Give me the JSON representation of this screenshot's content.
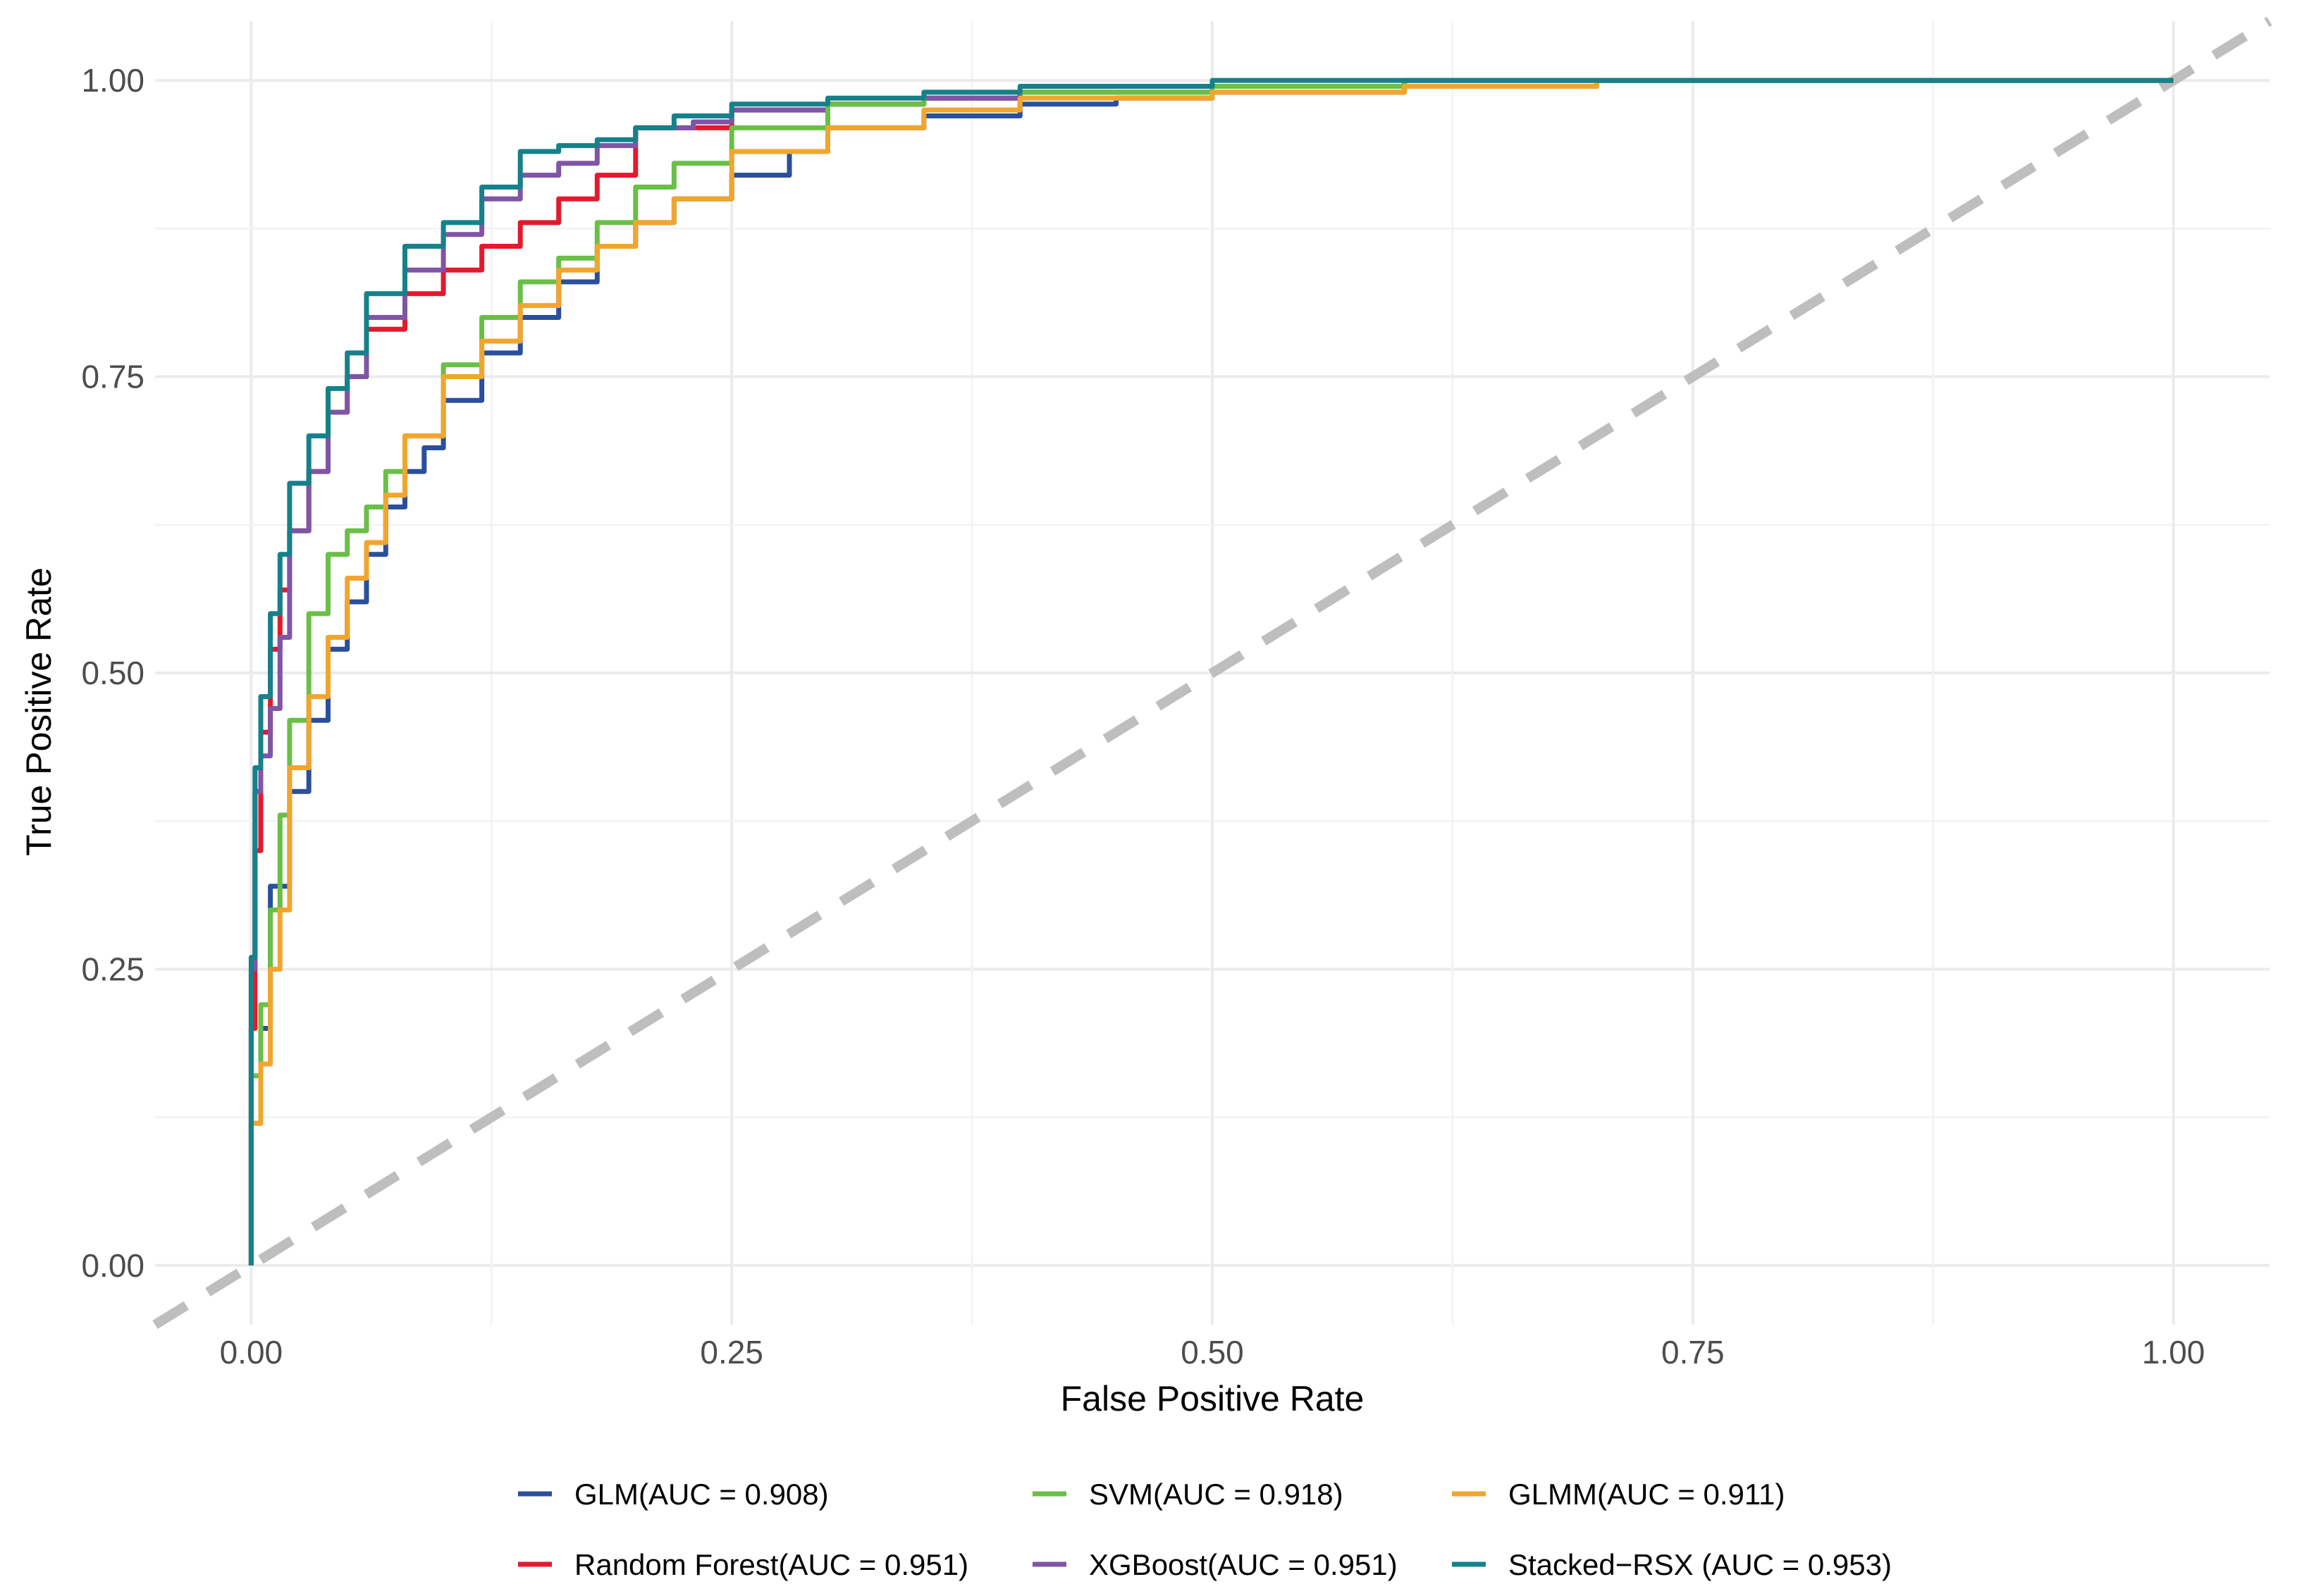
{
  "chart_data": {
    "type": "line",
    "title": "",
    "xlabel": "False Positive Rate",
    "ylabel": "True Positive Rate",
    "xlim": [
      -0.05,
      1.05
    ],
    "ylim": [
      -0.05,
      1.05
    ],
    "x_ticks": [
      0,
      0.25,
      0.5,
      0.75,
      1
    ],
    "x_tick_labels": [
      "0.00",
      "0.25",
      "0.50",
      "0.75",
      "1.00"
    ],
    "y_ticks": [
      0,
      0.25,
      0.5,
      0.75,
      1
    ],
    "y_tick_labels": [
      "0.00",
      "0.25",
      "0.50",
      "0.75",
      "1.00"
    ],
    "grid": true,
    "legend_position": "bottom",
    "reference_line": {
      "name": "chance",
      "x": [
        -0.05,
        1.05
      ],
      "y": [
        -0.05,
        1.05
      ],
      "color": "#bebebe",
      "style": "dashed"
    },
    "series": [
      {
        "name": "GLM(AUC = 0.908)",
        "color": "#2a4f9c",
        "x": [
          0,
          0.005,
          0.01,
          0.02,
          0.03,
          0.04,
          0.05,
          0.06,
          0.07,
          0.08,
          0.09,
          0.1,
          0.12,
          0.14,
          0.16,
          0.18,
          0.2,
          0.22,
          0.25,
          0.28,
          0.3,
          0.35,
          0.4,
          0.45,
          0.5,
          0.6,
          0.7,
          0.8,
          0.9,
          1
        ],
        "y": [
          0,
          0.12,
          0.2,
          0.32,
          0.4,
          0.46,
          0.52,
          0.56,
          0.6,
          0.64,
          0.67,
          0.69,
          0.73,
          0.77,
          0.8,
          0.83,
          0.86,
          0.88,
          0.9,
          0.92,
          0.94,
          0.96,
          0.97,
          0.98,
          0.985,
          0.99,
          0.995,
          1,
          1,
          1
        ]
      },
      {
        "name": "Random Forest(AUC = 0.951)",
        "color": "#e31a2d",
        "x": [
          0,
          0.002,
          0.005,
          0.01,
          0.015,
          0.02,
          0.03,
          0.04,
          0.05,
          0.06,
          0.08,
          0.1,
          0.12,
          0.14,
          0.16,
          0.18,
          0.2,
          0.25,
          0.3,
          0.35,
          0.4,
          0.5,
          0.6,
          0.7,
          0.8,
          0.9,
          1
        ],
        "y": [
          0,
          0.2,
          0.35,
          0.45,
          0.52,
          0.57,
          0.62,
          0.67,
          0.72,
          0.75,
          0.79,
          0.82,
          0.84,
          0.86,
          0.88,
          0.9,
          0.92,
          0.96,
          0.975,
          0.98,
          0.985,
          0.99,
          0.995,
          1,
          1,
          1,
          1
        ]
      },
      {
        "name": "XGBoost(AUC = 0.951)",
        "color": "#8054a6",
        "x": [
          0,
          0.002,
          0.005,
          0.01,
          0.015,
          0.02,
          0.03,
          0.04,
          0.05,
          0.06,
          0.08,
          0.1,
          0.12,
          0.14,
          0.16,
          0.18,
          0.2,
          0.23,
          0.25,
          0.3,
          0.35,
          0.4,
          0.5,
          0.6,
          0.7,
          0.8,
          0.9,
          1
        ],
        "y": [
          0,
          0.25,
          0.4,
          0.43,
          0.47,
          0.53,
          0.62,
          0.67,
          0.72,
          0.75,
          0.8,
          0.84,
          0.87,
          0.9,
          0.92,
          0.93,
          0.945,
          0.96,
          0.965,
          0.975,
          0.98,
          0.985,
          0.99,
          0.995,
          1,
          1,
          1,
          1
        ]
      },
      {
        "name": "SVM(AUC = 0.918)",
        "color": "#6abf46",
        "x": [
          0,
          0.005,
          0.01,
          0.015,
          0.02,
          0.03,
          0.04,
          0.05,
          0.06,
          0.07,
          0.08,
          0.1,
          0.12,
          0.14,
          0.16,
          0.18,
          0.2,
          0.22,
          0.25,
          0.3,
          0.35,
          0.4,
          0.5,
          0.6,
          0.7,
          0.8,
          0.9,
          1
        ],
        "y": [
          0,
          0.16,
          0.22,
          0.3,
          0.38,
          0.46,
          0.55,
          0.6,
          0.62,
          0.64,
          0.67,
          0.7,
          0.76,
          0.8,
          0.83,
          0.85,
          0.88,
          0.91,
          0.93,
          0.96,
          0.98,
          0.99,
          0.99,
          0.995,
          1,
          1,
          1,
          1
        ]
      },
      {
        "name": "GLMM(AUC = 0.911)",
        "color": "#f2a52e",
        "x": [
          0,
          0.005,
          0.01,
          0.015,
          0.02,
          0.03,
          0.04,
          0.05,
          0.06,
          0.07,
          0.08,
          0.1,
          0.12,
          0.14,
          0.16,
          0.18,
          0.2,
          0.22,
          0.25,
          0.3,
          0.35,
          0.4,
          0.5,
          0.6,
          0.7,
          0.8,
          0.9,
          1
        ],
        "y": [
          0,
          0.12,
          0.17,
          0.25,
          0.3,
          0.42,
          0.48,
          0.53,
          0.58,
          0.61,
          0.65,
          0.7,
          0.75,
          0.78,
          0.81,
          0.84,
          0.86,
          0.88,
          0.9,
          0.94,
          0.96,
          0.975,
          0.985,
          0.99,
          0.995,
          1,
          1,
          1
        ]
      },
      {
        "name": "Stacked−RSX (AUC = 0.953)",
        "color": "#15818a",
        "x": [
          0,
          0.002,
          0.005,
          0.01,
          0.015,
          0.02,
          0.03,
          0.04,
          0.05,
          0.06,
          0.08,
          0.1,
          0.12,
          0.14,
          0.16,
          0.18,
          0.2,
          0.22,
          0.25,
          0.3,
          0.35,
          0.4,
          0.5,
          0.6,
          0.7,
          0.8,
          0.9,
          1
        ],
        "y": [
          0,
          0.26,
          0.42,
          0.48,
          0.55,
          0.6,
          0.66,
          0.7,
          0.74,
          0.77,
          0.82,
          0.86,
          0.88,
          0.91,
          0.94,
          0.945,
          0.95,
          0.96,
          0.97,
          0.98,
          0.985,
          0.99,
          0.995,
          1,
          1,
          1,
          1,
          1
        ]
      }
    ],
    "legend_order": [
      0,
      3,
      4,
      1,
      2,
      5
    ]
  }
}
